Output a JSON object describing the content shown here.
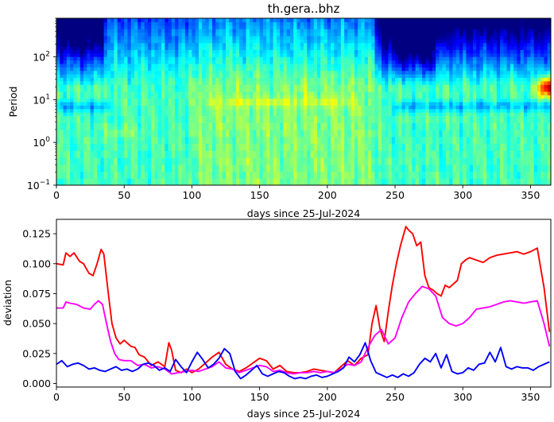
{
  "chart_data": [
    {
      "type": "heatmap",
      "title": "th.gera..bhz",
      "xlabel": "days since 25-Jul-2024",
      "ylabel": "Period",
      "xlim": [
        0,
        365
      ],
      "ylim": [
        0.1,
        800
      ],
      "yscale": "log",
      "x_ticks": [
        "0",
        "50",
        "100",
        "150",
        "200",
        "250",
        "300",
        "350"
      ],
      "y_ticks": [
        {
          "base": "10",
          "exp": "2",
          "value": 100
        },
        {
          "base": "10",
          "exp": "1",
          "value": 10
        },
        {
          "base": "10",
          "exp": "0",
          "value": 1
        },
        {
          "base": "10",
          "exp": "−1",
          "value": 0.1
        }
      ],
      "colormap": "jet",
      "features": [
        {
          "period": "long (>100)",
          "days": [
            0,
            35
          ],
          "level": "low"
        },
        {
          "period": "long (>100)",
          "days": [
            235,
            365
          ],
          "level": "low"
        },
        {
          "period": "~7",
          "days": [
            0,
            40
          ],
          "level": "low"
        },
        {
          "period": "~7",
          "days": [
            250,
            365
          ],
          "level": "low"
        },
        {
          "period": "~8",
          "days": [
            110,
            220
          ],
          "level": "high"
        },
        {
          "period": "~20",
          "days": [
            355,
            365
          ],
          "level": "very high"
        }
      ]
    },
    {
      "type": "line",
      "xlabel": "days since 25-Jul-2024",
      "ylabel": "deviation",
      "xlim": [
        0,
        365
      ],
      "ylim": [
        -0.003,
        0.137
      ],
      "x_ticks": [
        "0",
        "50",
        "100",
        "150",
        "200",
        "250",
        "300",
        "350"
      ],
      "y_ticks": [
        "0.000",
        "0.025",
        "0.050",
        "0.075",
        "0.100",
        "0.125"
      ],
      "grid": false,
      "series": [
        {
          "color": "#ff0000",
          "x": [
            0,
            5,
            7,
            10,
            13,
            17,
            20,
            24,
            27,
            30,
            33,
            35,
            38,
            41,
            44,
            47,
            50,
            55,
            58,
            61,
            65,
            70,
            75,
            80,
            83,
            85,
            88,
            92,
            96,
            100,
            105,
            110,
            115,
            120,
            125,
            130,
            135,
            140,
            145,
            150,
            155,
            160,
            165,
            170,
            175,
            180,
            185,
            190,
            195,
            200,
            205,
            210,
            215,
            220,
            225,
            230,
            233,
            236,
            239,
            242,
            245,
            248,
            251,
            254,
            258,
            260,
            263,
            266,
            269,
            272,
            275,
            278,
            281,
            284,
            287,
            290,
            293,
            296,
            299,
            302,
            305,
            310,
            315,
            320,
            325,
            330,
            335,
            340,
            345,
            350,
            355,
            360,
            364
          ],
          "values": [
            0.1,
            0.099,
            0.109,
            0.106,
            0.109,
            0.102,
            0.1,
            0.092,
            0.09,
            0.1,
            0.112,
            0.108,
            0.078,
            0.05,
            0.038,
            0.033,
            0.036,
            0.031,
            0.03,
            0.024,
            0.022,
            0.015,
            0.018,
            0.014,
            0.034,
            0.028,
            0.011,
            0.009,
            0.012,
            0.009,
            0.012,
            0.017,
            0.022,
            0.026,
            0.016,
            0.012,
            0.01,
            0.013,
            0.017,
            0.021,
            0.019,
            0.012,
            0.015,
            0.01,
            0.009,
            0.009,
            0.01,
            0.012,
            0.011,
            0.01,
            0.009,
            0.014,
            0.019,
            0.015,
            0.021,
            0.024,
            0.05,
            0.065,
            0.045,
            0.035,
            0.06,
            0.082,
            0.1,
            0.115,
            0.131,
            0.128,
            0.125,
            0.115,
            0.118,
            0.09,
            0.08,
            0.078,
            0.075,
            0.073,
            0.082,
            0.08,
            0.083,
            0.086,
            0.1,
            0.103,
            0.105,
            0.103,
            0.101,
            0.105,
            0.107,
            0.108,
            0.109,
            0.11,
            0.108,
            0.11,
            0.113,
            0.08,
            0.043
          ]
        },
        {
          "color": "#ff00ff",
          "x": [
            0,
            5,
            7,
            10,
            15,
            20,
            25,
            28,
            31,
            34,
            37,
            40,
            43,
            46,
            50,
            55,
            60,
            65,
            70,
            75,
            80,
            85,
            90,
            95,
            100,
            105,
            110,
            115,
            120,
            125,
            130,
            135,
            140,
            145,
            150,
            155,
            160,
            165,
            170,
            175,
            180,
            185,
            190,
            195,
            200,
            205,
            210,
            215,
            220,
            225,
            230,
            235,
            240,
            245,
            250,
            255,
            260,
            265,
            270,
            275,
            280,
            285,
            290,
            295,
            300,
            305,
            310,
            315,
            320,
            325,
            330,
            335,
            340,
            345,
            350,
            355,
            360,
            364
          ],
          "values": [
            0.063,
            0.063,
            0.068,
            0.067,
            0.066,
            0.063,
            0.062,
            0.066,
            0.069,
            0.066,
            0.05,
            0.035,
            0.025,
            0.02,
            0.019,
            0.019,
            0.015,
            0.016,
            0.013,
            0.014,
            0.012,
            0.008,
            0.009,
            0.01,
            0.011,
            0.01,
            0.012,
            0.014,
            0.018,
            0.013,
            0.012,
            0.009,
            0.011,
            0.013,
            0.015,
            0.014,
            0.01,
            0.011,
            0.009,
            0.008,
            0.009,
            0.009,
            0.01,
            0.009,
            0.01,
            0.009,
            0.012,
            0.016,
            0.015,
            0.018,
            0.03,
            0.04,
            0.045,
            0.033,
            0.038,
            0.055,
            0.068,
            0.075,
            0.081,
            0.079,
            0.073,
            0.055,
            0.05,
            0.048,
            0.05,
            0.055,
            0.062,
            0.063,
            0.064,
            0.066,
            0.068,
            0.069,
            0.068,
            0.067,
            0.068,
            0.069,
            0.05,
            0.031
          ]
        },
        {
          "color": "#0000ff",
          "x": [
            0,
            4,
            8,
            12,
            16,
            20,
            24,
            28,
            32,
            36,
            40,
            44,
            48,
            52,
            56,
            60,
            64,
            68,
            72,
            76,
            80,
            84,
            88,
            92,
            96,
            100,
            104,
            108,
            112,
            116,
            120,
            124,
            128,
            132,
            136,
            140,
            144,
            148,
            152,
            156,
            160,
            164,
            168,
            172,
            176,
            180,
            184,
            188,
            192,
            196,
            200,
            204,
            208,
            212,
            216,
            220,
            224,
            228,
            232,
            236,
            240,
            244,
            248,
            252,
            256,
            260,
            264,
            268,
            272,
            276,
            280,
            284,
            288,
            292,
            296,
            300,
            304,
            308,
            312,
            316,
            320,
            324,
            328,
            332,
            336,
            340,
            344,
            348,
            352,
            356,
            360,
            364
          ],
          "values": [
            0.016,
            0.019,
            0.014,
            0.016,
            0.017,
            0.015,
            0.012,
            0.013,
            0.011,
            0.01,
            0.012,
            0.014,
            0.011,
            0.012,
            0.01,
            0.012,
            0.016,
            0.017,
            0.015,
            0.011,
            0.013,
            0.01,
            0.02,
            0.014,
            0.009,
            0.018,
            0.026,
            0.02,
            0.013,
            0.016,
            0.021,
            0.029,
            0.025,
            0.01,
            0.004,
            0.007,
            0.011,
            0.015,
            0.008,
            0.006,
            0.008,
            0.01,
            0.009,
            0.006,
            0.004,
            0.005,
            0.004,
            0.006,
            0.007,
            0.005,
            0.006,
            0.008,
            0.01,
            0.013,
            0.022,
            0.018,
            0.024,
            0.034,
            0.019,
            0.009,
            0.007,
            0.005,
            0.007,
            0.005,
            0.008,
            0.006,
            0.009,
            0.016,
            0.021,
            0.018,
            0.025,
            0.013,
            0.024,
            0.01,
            0.008,
            0.009,
            0.013,
            0.011,
            0.016,
            0.017,
            0.026,
            0.018,
            0.03,
            0.014,
            0.012,
            0.014,
            0.013,
            0.013,
            0.011,
            0.014,
            0.016,
            0.018
          ]
        }
      ]
    }
  ]
}
